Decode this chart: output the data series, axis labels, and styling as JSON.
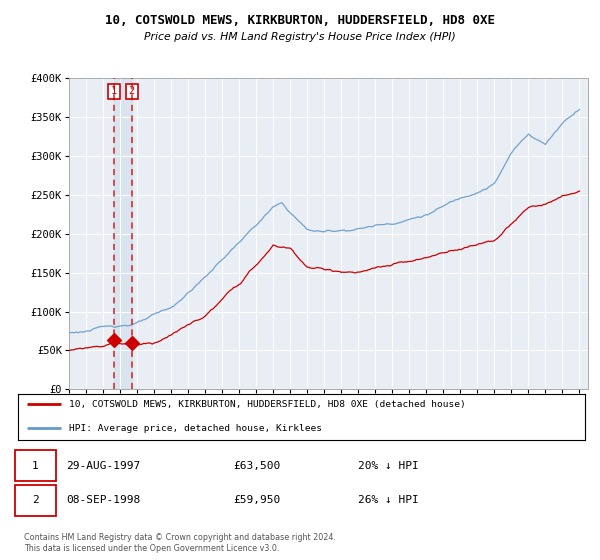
{
  "title": "10, COTSWOLD MEWS, KIRKBURTON, HUDDERSFIELD, HD8 0XE",
  "subtitle": "Price paid vs. HM Land Registry's House Price Index (HPI)",
  "legend_line1": "10, COTSWOLD MEWS, KIRKBURTON, HUDDERSFIELD, HD8 0XE (detached house)",
  "legend_line2": "HPI: Average price, detached house, Kirklees",
  "property_color": "#cc0000",
  "hpi_color": "#6699cc",
  "sale1_date": "29-AUG-1997",
  "sale1_price": 63500,
  "sale1_label": "20% ↓ HPI",
  "sale2_date": "08-SEP-1998",
  "sale2_price": 59950,
  "sale2_label": "26% ↓ HPI",
  "sale1_year": 1997.65,
  "sale2_year": 1998.69,
  "ylim": [
    0,
    400000
  ],
  "xlim_start": 1995,
  "xlim_end": 2025.5,
  "ytick_vals": [
    0,
    50000,
    100000,
    150000,
    200000,
    250000,
    300000,
    350000,
    400000
  ],
  "ytick_labels": [
    "£0",
    "£50K",
    "£100K",
    "£150K",
    "£200K",
    "£250K",
    "£300K",
    "£350K",
    "£400K"
  ],
  "footnote": "Contains HM Land Registry data © Crown copyright and database right 2024.\nThis data is licensed under the Open Government Licence v3.0.",
  "background_color": "#e8eef4",
  "grid_color": "#ffffff"
}
